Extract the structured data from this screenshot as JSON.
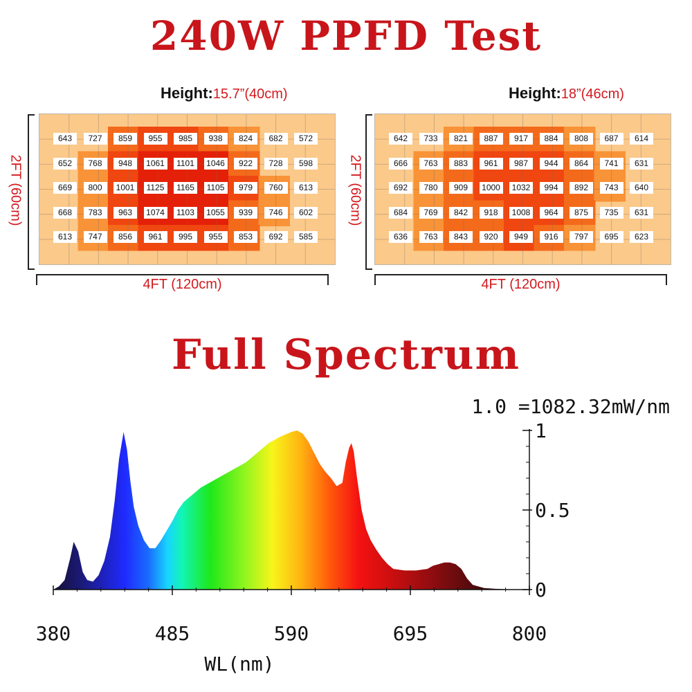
{
  "ppfd_test": {
    "title": "240W PPFD Test",
    "height_label": "Height:",
    "panels": [
      {
        "height_value": "15.7”(40cm)",
        "width_label": "4FT (120cm)",
        "depth_label": "2FT (60cm)",
        "grid": [
          [
            "643",
            "727",
            "859",
            "955",
            "985",
            "938",
            "824",
            "682",
            "572"
          ],
          [
            "652",
            "768",
            "948",
            "1061",
            "1101",
            "1046",
            "922",
            "728",
            "598"
          ],
          [
            "669",
            "800",
            "1001",
            "1125",
            "1165",
            "1105",
            "979",
            "760",
            "613"
          ],
          [
            "668",
            "783",
            "963",
            "1074",
            "1103",
            "1055",
            "939",
            "746",
            "602"
          ],
          [
            "613",
            "747",
            "856",
            "961",
            "995",
            "955",
            "853",
            "692",
            "585"
          ]
        ]
      },
      {
        "height_value": "18”(46cm)",
        "width_label": "4FT (120cm)",
        "depth_label": "2FT (60cm)",
        "grid": [
          [
            "642",
            "733",
            "821",
            "887",
            "917",
            "884",
            "808",
            "687",
            "614"
          ],
          [
            "666",
            "763",
            "883",
            "961",
            "987",
            "944",
            "864",
            "741",
            "631"
          ],
          [
            "692",
            "780",
            "909",
            "1000",
            "1032",
            "994",
            "892",
            "743",
            "640"
          ],
          [
            "684",
            "769",
            "842",
            "918",
            "1008",
            "964",
            "875",
            "735",
            "631"
          ],
          [
            "636",
            "763",
            "843",
            "920",
            "949",
            "916",
            "797",
            "695",
            "623"
          ]
        ]
      }
    ]
  },
  "spectrum": {
    "title": "Full Spectrum",
    "scale_note": "1.0 =1082.32mW/nm"
  },
  "chart_data": {
    "type": "area",
    "title": "Full Spectrum",
    "xlabel": "WL(nm)",
    "ylabel": "",
    "xlim": [
      380,
      800
    ],
    "ylim": [
      0,
      1
    ],
    "xticks": [
      "380",
      "485",
      "590",
      "695",
      "800"
    ],
    "yticks": [
      "0",
      "0.5",
      "1"
    ],
    "grid": false,
    "legend": "none",
    "x": [
      380,
      385,
      390,
      395,
      398,
      402,
      406,
      410,
      415,
      420,
      425,
      430,
      434,
      438,
      442,
      445,
      448,
      451,
      455,
      460,
      465,
      470,
      475,
      480,
      485,
      490,
      495,
      500,
      505,
      510,
      520,
      530,
      540,
      550,
      560,
      570,
      580,
      590,
      595,
      600,
      605,
      610,
      615,
      620,
      625,
      630,
      635,
      638,
      641,
      643,
      645,
      648,
      652,
      656,
      660,
      665,
      670,
      675,
      680,
      690,
      700,
      710,
      715,
      720,
      725,
      730,
      735,
      740,
      745,
      750,
      760,
      770,
      780,
      790,
      800
    ],
    "values": [
      0.0,
      0.02,
      0.06,
      0.2,
      0.3,
      0.24,
      0.11,
      0.06,
      0.05,
      0.09,
      0.18,
      0.33,
      0.55,
      0.82,
      0.99,
      0.88,
      0.68,
      0.52,
      0.4,
      0.31,
      0.26,
      0.26,
      0.31,
      0.37,
      0.43,
      0.5,
      0.55,
      0.58,
      0.61,
      0.64,
      0.68,
      0.72,
      0.76,
      0.8,
      0.86,
      0.92,
      0.96,
      0.99,
      1.0,
      0.98,
      0.93,
      0.86,
      0.79,
      0.74,
      0.7,
      0.65,
      0.67,
      0.8,
      0.89,
      0.92,
      0.87,
      0.7,
      0.5,
      0.38,
      0.31,
      0.25,
      0.2,
      0.16,
      0.13,
      0.12,
      0.12,
      0.13,
      0.15,
      0.16,
      0.17,
      0.17,
      0.16,
      0.13,
      0.07,
      0.03,
      0.01,
      0.005,
      0.002,
      0.001,
      0.0
    ]
  }
}
